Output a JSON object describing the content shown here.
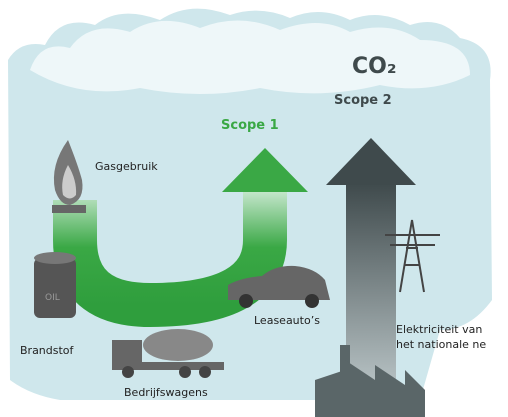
{
  "labels": {
    "co2": "CO₂",
    "scope2": "Scope 2",
    "scope1": "Scope 1",
    "gas": "Gasgebruik",
    "fuel": "Brandstof",
    "trucks": "Bedrijfswagens",
    "lease": "Leaseauto’s",
    "electricity": [
      "Elektriciteit van",
      "het nationale ne"
    ]
  }
}
